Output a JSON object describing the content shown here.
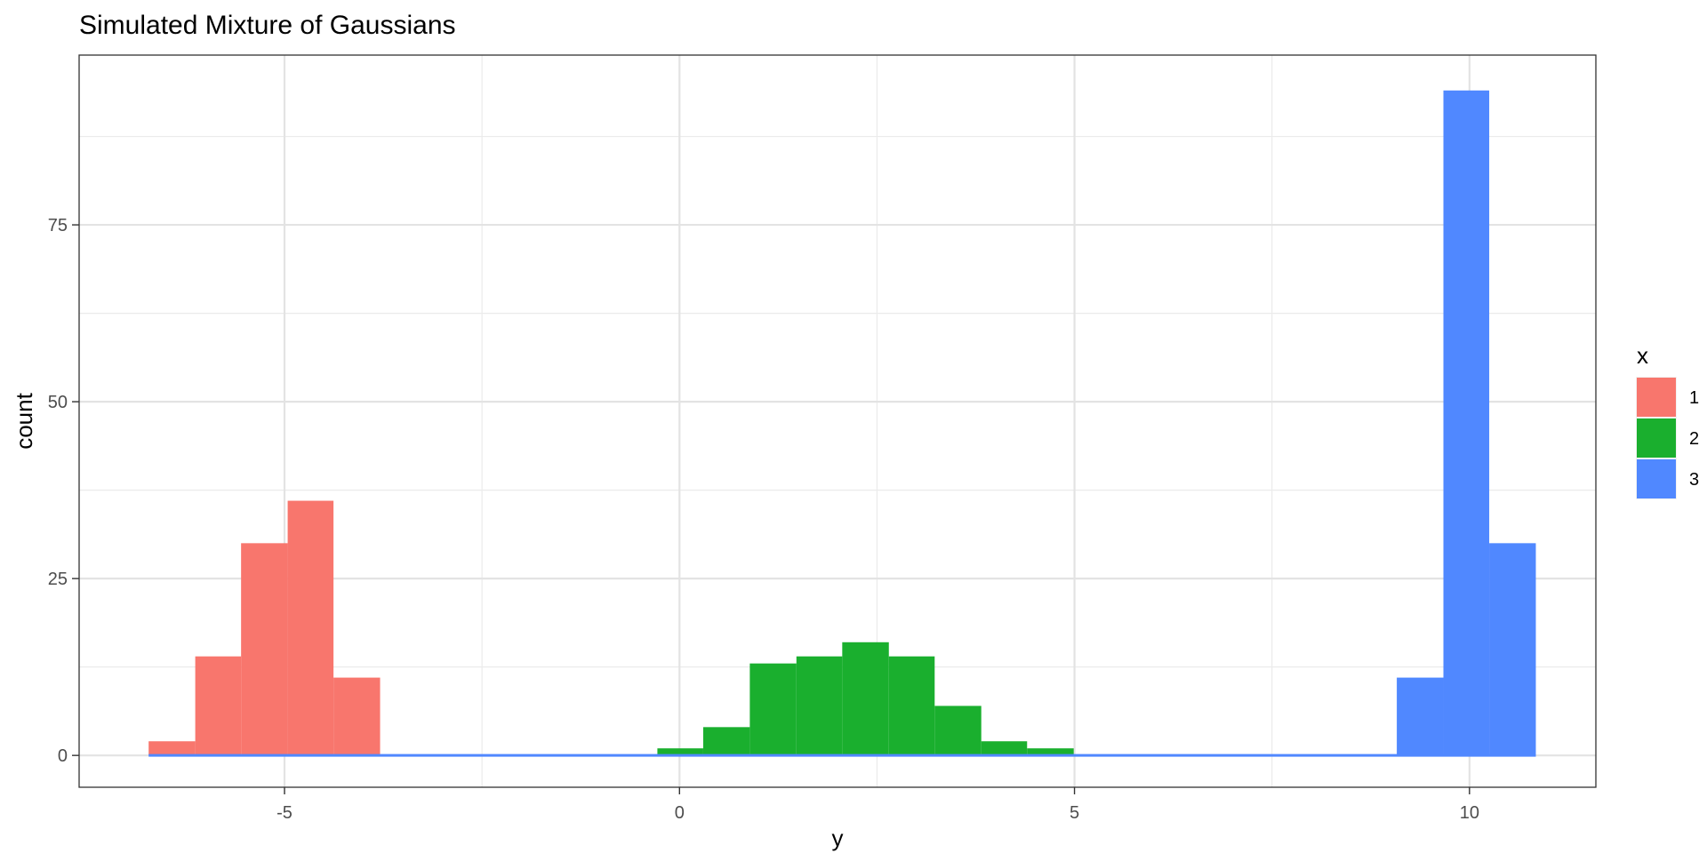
{
  "chart_data": {
    "type": "bar",
    "title": "Simulated Mixture of Gaussians",
    "xlabel": "y",
    "ylabel": "count",
    "xlim": [
      -7.6,
      11.6
    ],
    "ylim": [
      -4.5,
      99
    ],
    "x_ticks": [
      -5,
      0,
      5,
      10
    ],
    "x_tick_labels": [
      "-5",
      "0",
      "5",
      "10"
    ],
    "y_ticks": [
      0,
      25,
      50,
      75
    ],
    "y_tick_labels": [
      "0",
      "25",
      "50",
      "75"
    ],
    "grid": true,
    "stacked": true,
    "bin_edges": [
      -6.72,
      -6.13,
      -5.55,
      -4.96,
      -4.38,
      -3.79,
      -3.21,
      -2.62,
      -2.04,
      -1.45,
      -0.87,
      -0.28,
      0.3,
      0.89,
      1.48,
      2.06,
      2.65,
      3.23,
      3.82,
      4.4,
      4.99,
      5.57,
      6.16,
      6.74,
      7.33,
      7.91,
      8.5,
      9.08,
      9.67,
      10.25,
      10.84
    ],
    "legend": {
      "title": "x",
      "position": "right",
      "entries": [
        "1",
        "2",
        "3"
      ]
    },
    "series": [
      {
        "name": "1",
        "color": "#F8766D",
        "values": [
          2,
          14,
          30,
          36,
          11,
          0,
          0,
          0,
          0,
          0,
          0,
          0,
          0,
          0,
          0,
          0,
          0,
          0,
          0,
          0,
          0,
          0,
          0,
          0,
          0,
          0,
          0,
          0,
          0,
          0
        ]
      },
      {
        "name": "2",
        "color": "#1AAF2E",
        "values": [
          0,
          0,
          0,
          0,
          0,
          0,
          0,
          0,
          0,
          0,
          0,
          1,
          4,
          13,
          14,
          16,
          14,
          7,
          2,
          1,
          0,
          0,
          0,
          0,
          0,
          0,
          0,
          0,
          0,
          0
        ]
      },
      {
        "name": "3",
        "color": "#5088FF",
        "values": [
          0,
          0,
          0,
          0,
          0,
          0,
          0,
          0,
          0,
          0,
          0,
          0,
          0,
          0,
          0,
          0,
          0,
          0,
          0,
          0,
          0,
          0,
          0,
          0,
          0,
          0,
          0,
          11,
          94,
          30
        ]
      }
    ]
  }
}
